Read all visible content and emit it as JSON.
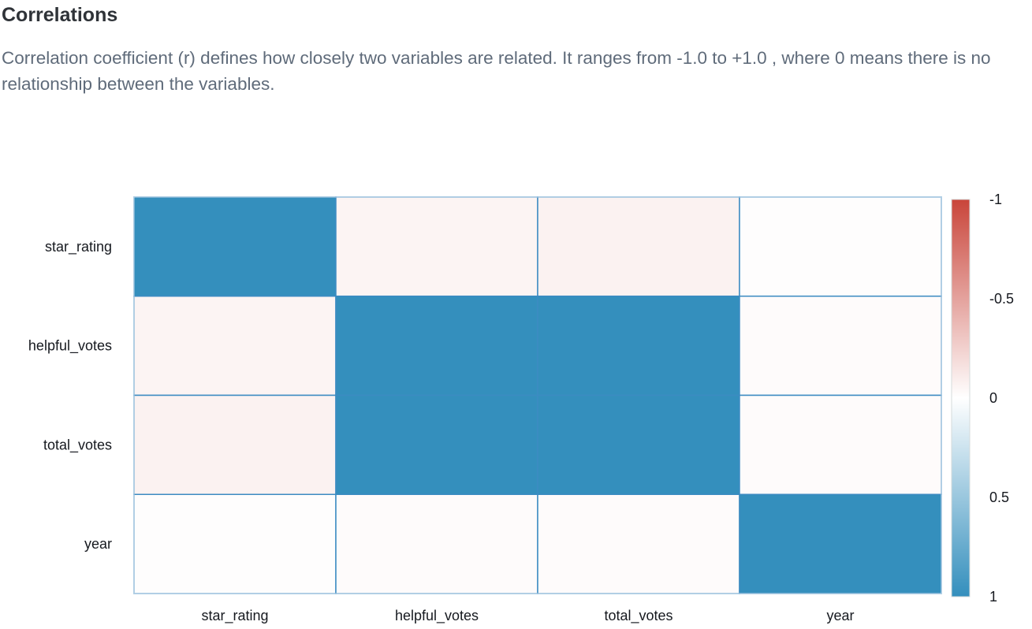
{
  "section": {
    "title": "Correlations",
    "description": "Correlation coefficient (r) defines how closely two variables are related. It ranges from -1.0 to +1.0 , where 0 means there is no relationship between the variables."
  },
  "colors": {
    "positive": "#348fbd",
    "neutral": "#ffffff",
    "negative": "#c9453a",
    "cell_border": "#3c8bc2"
  },
  "chart_data": {
    "type": "heatmap",
    "title": "",
    "x_categories": [
      "star_rating",
      "helpful_votes",
      "total_votes",
      "year"
    ],
    "y_categories": [
      "star_rating",
      "helpful_votes",
      "total_votes",
      "year"
    ],
    "values": [
      [
        1.0,
        -0.06,
        -0.07,
        -0.01
      ],
      [
        -0.06,
        1.0,
        1.0,
        -0.02
      ],
      [
        -0.07,
        1.0,
        1.0,
        -0.02
      ],
      [
        -0.01,
        -0.02,
        -0.02,
        1.0
      ]
    ],
    "colorscale": {
      "min": -1,
      "max": 1,
      "ticks": [
        -1,
        -0.5,
        0,
        0.5,
        1
      ],
      "tick_labels": [
        "-1",
        "-0.5",
        "0",
        "0.5",
        "1"
      ],
      "orientation": "top-to-bottom"
    },
    "grid": true,
    "legend": "colorbar-right"
  }
}
